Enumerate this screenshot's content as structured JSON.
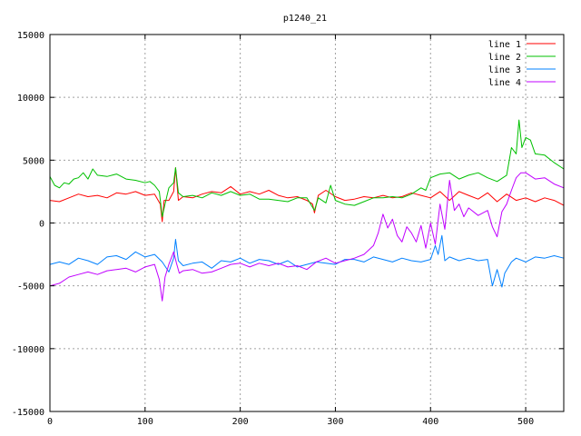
{
  "chart_data": {
    "type": "line",
    "title": "p1240_21",
    "xlabel": "",
    "ylabel": "",
    "xlim": [
      0,
      540
    ],
    "ylim": [
      -15000,
      15000
    ],
    "xticks": [
      0,
      100,
      200,
      300,
      400,
      500
    ],
    "yticks": [
      -15000,
      -10000,
      -5000,
      0,
      5000,
      10000,
      15000
    ],
    "grid": true,
    "legend_position": "top-right",
    "series": [
      {
        "name": "line 1",
        "color": "#ff0000",
        "points": [
          [
            0,
            1800
          ],
          [
            10,
            1700
          ],
          [
            20,
            2000
          ],
          [
            30,
            2300
          ],
          [
            40,
            2100
          ],
          [
            50,
            2200
          ],
          [
            60,
            2000
          ],
          [
            70,
            2400
          ],
          [
            80,
            2300
          ],
          [
            90,
            2500
          ],
          [
            100,
            2200
          ],
          [
            110,
            2300
          ],
          [
            116,
            1500
          ],
          [
            118,
            100
          ],
          [
            120,
            1800
          ],
          [
            125,
            1800
          ],
          [
            130,
            2500
          ],
          [
            132,
            4400
          ],
          [
            135,
            1800
          ],
          [
            140,
            2100
          ],
          [
            150,
            2000
          ],
          [
            160,
            2300
          ],
          [
            170,
            2500
          ],
          [
            180,
            2400
          ],
          [
            190,
            2900
          ],
          [
            200,
            2300
          ],
          [
            210,
            2500
          ],
          [
            220,
            2300
          ],
          [
            230,
            2600
          ],
          [
            240,
            2200
          ],
          [
            250,
            2000
          ],
          [
            260,
            2100
          ],
          [
            270,
            1800
          ],
          [
            276,
            1500
          ],
          [
            278,
            800
          ],
          [
            282,
            2200
          ],
          [
            290,
            2600
          ],
          [
            300,
            2100
          ],
          [
            310,
            1800
          ],
          [
            320,
            1900
          ],
          [
            330,
            2100
          ],
          [
            340,
            2000
          ],
          [
            350,
            2200
          ],
          [
            360,
            2000
          ],
          [
            370,
            2100
          ],
          [
            380,
            2400
          ],
          [
            390,
            2200
          ],
          [
            400,
            2000
          ],
          [
            410,
            2500
          ],
          [
            420,
            1800
          ],
          [
            430,
            2500
          ],
          [
            440,
            2200
          ],
          [
            450,
            1900
          ],
          [
            460,
            2400
          ],
          [
            470,
            1700
          ],
          [
            480,
            2300
          ],
          [
            490,
            1800
          ],
          [
            500,
            2000
          ],
          [
            510,
            1700
          ],
          [
            520,
            2000
          ],
          [
            530,
            1800
          ],
          [
            540,
            1400
          ]
        ]
      },
      {
        "name": "line 2",
        "color": "#00c000",
        "points": [
          [
            0,
            3700
          ],
          [
            5,
            3000
          ],
          [
            10,
            2800
          ],
          [
            15,
            3200
          ],
          [
            20,
            3100
          ],
          [
            25,
            3500
          ],
          [
            30,
            3600
          ],
          [
            35,
            4000
          ],
          [
            40,
            3500
          ],
          [
            45,
            4300
          ],
          [
            50,
            3800
          ],
          [
            60,
            3700
          ],
          [
            70,
            3900
          ],
          [
            80,
            3500
          ],
          [
            90,
            3400
          ],
          [
            100,
            3200
          ],
          [
            105,
            3300
          ],
          [
            110,
            3000
          ],
          [
            115,
            2500
          ],
          [
            118,
            500
          ],
          [
            121,
            1500
          ],
          [
            125,
            2800
          ],
          [
            130,
            3200
          ],
          [
            132,
            4400
          ],
          [
            135,
            2400
          ],
          [
            140,
            2100
          ],
          [
            150,
            2200
          ],
          [
            160,
            2000
          ],
          [
            170,
            2400
          ],
          [
            180,
            2200
          ],
          [
            190,
            2500
          ],
          [
            200,
            2200
          ],
          [
            210,
            2300
          ],
          [
            220,
            1900
          ],
          [
            230,
            1900
          ],
          [
            240,
            1800
          ],
          [
            250,
            1700
          ],
          [
            260,
            2000
          ],
          [
            270,
            2000
          ],
          [
            278,
            1000
          ],
          [
            282,
            2000
          ],
          [
            290,
            1600
          ],
          [
            295,
            3000
          ],
          [
            300,
            1800
          ],
          [
            310,
            1500
          ],
          [
            320,
            1400
          ],
          [
            330,
            1700
          ],
          [
            340,
            2000
          ],
          [
            350,
            2000
          ],
          [
            360,
            2100
          ],
          [
            370,
            2000
          ],
          [
            380,
            2300
          ],
          [
            390,
            2800
          ],
          [
            395,
            2600
          ],
          [
            400,
            3600
          ],
          [
            410,
            3900
          ],
          [
            420,
            4000
          ],
          [
            430,
            3500
          ],
          [
            440,
            3800
          ],
          [
            450,
            4000
          ],
          [
            460,
            3600
          ],
          [
            470,
            3300
          ],
          [
            480,
            3800
          ],
          [
            485,
            6000
          ],
          [
            490,
            5500
          ],
          [
            493,
            8200
          ],
          [
            496,
            6000
          ],
          [
            500,
            6800
          ],
          [
            505,
            6600
          ],
          [
            510,
            5500
          ],
          [
            520,
            5400
          ],
          [
            530,
            4800
          ],
          [
            540,
            4300
          ]
        ]
      },
      {
        "name": "line 3",
        "color": "#0080ff",
        "points": [
          [
            0,
            -3300
          ],
          [
            10,
            -3100
          ],
          [
            20,
            -3300
          ],
          [
            30,
            -2800
          ],
          [
            40,
            -3000
          ],
          [
            50,
            -3300
          ],
          [
            60,
            -2700
          ],
          [
            70,
            -2600
          ],
          [
            80,
            -2900
          ],
          [
            90,
            -2300
          ],
          [
            100,
            -2700
          ],
          [
            110,
            -2500
          ],
          [
            118,
            -3100
          ],
          [
            125,
            -3900
          ],
          [
            130,
            -2800
          ],
          [
            132,
            -1300
          ],
          [
            135,
            -3000
          ],
          [
            140,
            -3400
          ],
          [
            150,
            -3200
          ],
          [
            160,
            -3100
          ],
          [
            170,
            -3600
          ],
          [
            180,
            -3000
          ],
          [
            190,
            -3100
          ],
          [
            200,
            -2800
          ],
          [
            210,
            -3200
          ],
          [
            220,
            -2900
          ],
          [
            230,
            -3000
          ],
          [
            240,
            -3300
          ],
          [
            250,
            -3000
          ],
          [
            260,
            -3500
          ],
          [
            270,
            -3300
          ],
          [
            280,
            -3100
          ],
          [
            290,
            -3200
          ],
          [
            300,
            -3300
          ],
          [
            310,
            -2900
          ],
          [
            320,
            -2900
          ],
          [
            330,
            -3100
          ],
          [
            340,
            -2700
          ],
          [
            350,
            -2900
          ],
          [
            360,
            -3100
          ],
          [
            370,
            -2800
          ],
          [
            380,
            -3000
          ],
          [
            390,
            -3100
          ],
          [
            400,
            -2900
          ],
          [
            405,
            -1800
          ],
          [
            408,
            -2500
          ],
          [
            412,
            -1000
          ],
          [
            415,
            -3000
          ],
          [
            420,
            -2700
          ],
          [
            430,
            -3000
          ],
          [
            440,
            -2800
          ],
          [
            450,
            -3000
          ],
          [
            460,
            -2900
          ],
          [
            465,
            -5000
          ],
          [
            470,
            -3700
          ],
          [
            475,
            -5100
          ],
          [
            478,
            -4000
          ],
          [
            485,
            -3100
          ],
          [
            490,
            -2800
          ],
          [
            500,
            -3100
          ],
          [
            510,
            -2700
          ],
          [
            520,
            -2800
          ],
          [
            530,
            -2600
          ],
          [
            540,
            -2800
          ]
        ]
      },
      {
        "name": "line 4",
        "color": "#c000ff",
        "points": [
          [
            0,
            -5000
          ],
          [
            10,
            -4800
          ],
          [
            20,
            -4300
          ],
          [
            30,
            -4100
          ],
          [
            40,
            -3900
          ],
          [
            50,
            -4100
          ],
          [
            60,
            -3800
          ],
          [
            70,
            -3700
          ],
          [
            80,
            -3600
          ],
          [
            90,
            -3900
          ],
          [
            100,
            -3500
          ],
          [
            110,
            -3300
          ],
          [
            115,
            -4500
          ],
          [
            118,
            -6200
          ],
          [
            121,
            -4300
          ],
          [
            125,
            -3300
          ],
          [
            130,
            -2300
          ],
          [
            133,
            -3200
          ],
          [
            136,
            -4000
          ],
          [
            140,
            -3800
          ],
          [
            150,
            -3700
          ],
          [
            160,
            -4000
          ],
          [
            170,
            -3900
          ],
          [
            180,
            -3600
          ],
          [
            190,
            -3300
          ],
          [
            200,
            -3200
          ],
          [
            210,
            -3500
          ],
          [
            220,
            -3200
          ],
          [
            230,
            -3400
          ],
          [
            240,
            -3200
          ],
          [
            250,
            -3500
          ],
          [
            260,
            -3400
          ],
          [
            270,
            -3700
          ],
          [
            280,
            -3100
          ],
          [
            290,
            -2800
          ],
          [
            300,
            -3200
          ],
          [
            310,
            -3000
          ],
          [
            320,
            -2800
          ],
          [
            330,
            -2500
          ],
          [
            340,
            -1800
          ],
          [
            345,
            -800
          ],
          [
            350,
            700
          ],
          [
            355,
            -400
          ],
          [
            360,
            300
          ],
          [
            365,
            -1000
          ],
          [
            370,
            -1500
          ],
          [
            375,
            -300
          ],
          [
            380,
            -800
          ],
          [
            385,
            -1500
          ],
          [
            390,
            -200
          ],
          [
            395,
            -2000
          ],
          [
            400,
            0
          ],
          [
            405,
            -1700
          ],
          [
            410,
            1500
          ],
          [
            415,
            -500
          ],
          [
            420,
            3400
          ],
          [
            425,
            1000
          ],
          [
            430,
            1500
          ],
          [
            435,
            500
          ],
          [
            440,
            1200
          ],
          [
            450,
            600
          ],
          [
            460,
            1000
          ],
          [
            465,
            -300
          ],
          [
            470,
            -1100
          ],
          [
            475,
            900
          ],
          [
            480,
            1500
          ],
          [
            485,
            2600
          ],
          [
            490,
            3600
          ],
          [
            495,
            4000
          ],
          [
            500,
            4000
          ],
          [
            510,
            3500
          ],
          [
            520,
            3600
          ],
          [
            530,
            3100
          ],
          [
            540,
            2800
          ]
        ]
      }
    ]
  }
}
